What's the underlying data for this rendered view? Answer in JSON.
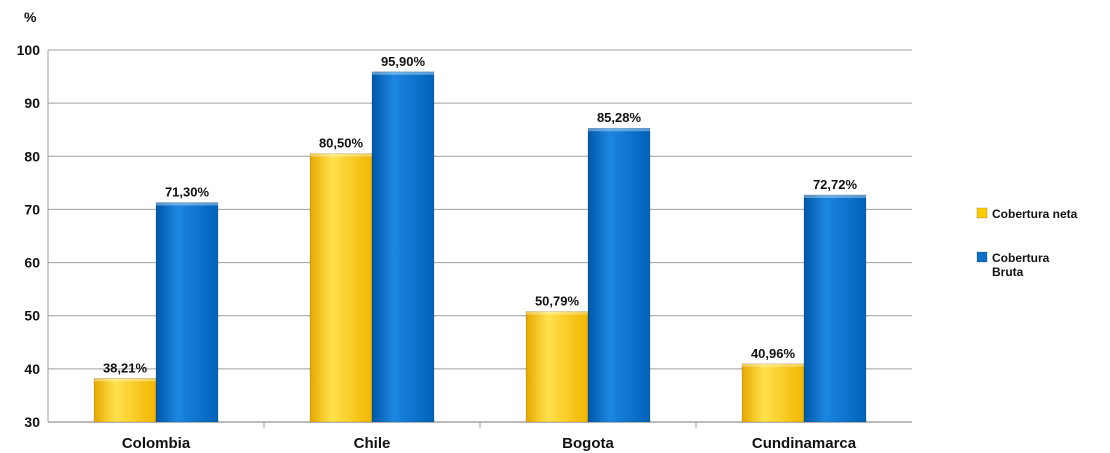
{
  "chart_data": {
    "type": "bar",
    "title": "",
    "xlabel": "",
    "ylabel": "%",
    "ylim": [
      30,
      100
    ],
    "yticks": [
      30,
      40,
      50,
      60,
      70,
      80,
      90,
      100
    ],
    "grid": true,
    "legend_position": "right",
    "categories": [
      "Colombia",
      "Chile",
      "Bogota",
      "Cundinamarca"
    ],
    "series": [
      {
        "name": "Cobertura neta",
        "color": "#FFCC00",
        "values": [
          38.21,
          80.5,
          50.79,
          40.96
        ],
        "labels": [
          "38,21%",
          "80,50%",
          "50,79%",
          "40,96%"
        ]
      },
      {
        "name": "Cobertura Bruta",
        "color": "#0A6FC7",
        "values": [
          71.3,
          95.9,
          85.28,
          72.72
        ],
        "labels": [
          "71,30%",
          "95,90%",
          "85,28%",
          "72,72%"
        ]
      }
    ]
  }
}
